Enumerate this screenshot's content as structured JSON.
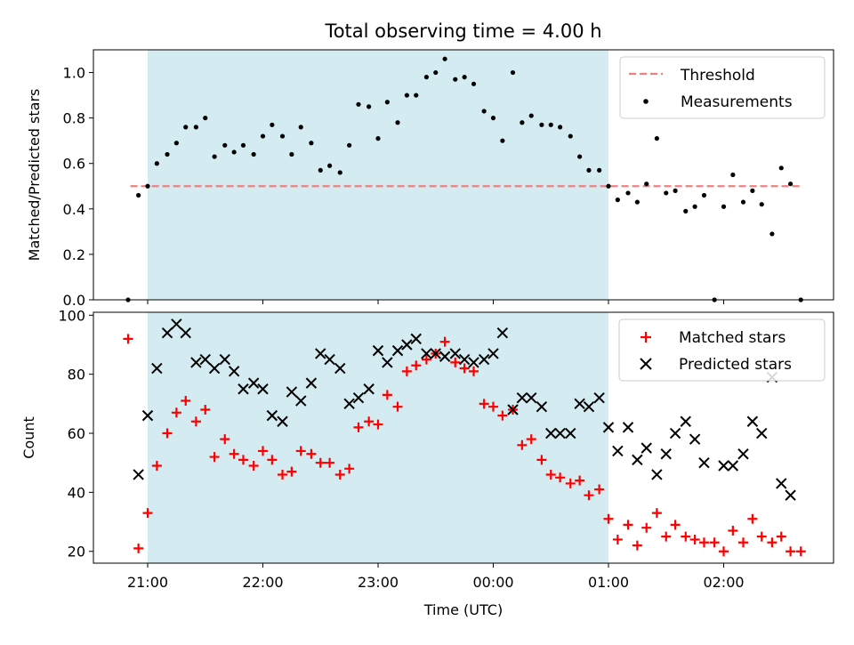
{
  "chart_data": {
    "title": "Total observing time = 4.00 h",
    "xlabel": "Time (UTC)",
    "x_ticks": [
      {
        "hour": 21,
        "label": "21:00"
      },
      {
        "hour": 22,
        "label": "22:00"
      },
      {
        "hour": 23,
        "label": "23:00"
      },
      {
        "hour": 24,
        "label": "00:00"
      },
      {
        "hour": 25,
        "label": "01:00"
      },
      {
        "hour": 26,
        "label": "02:00"
      }
    ],
    "observing_window": [
      21.0,
      25.0
    ],
    "colors": {
      "window": "#d3ebf1",
      "threshold": "#f08080",
      "measurement": "#000000",
      "matched": "#ff0000",
      "predicted": "#000000"
    },
    "panels": [
      {
        "type": "scatter",
        "ylabel": "Matched/Predicted stars",
        "ylim": [
          0,
          1.1
        ],
        "y_ticks": [
          0.0,
          0.2,
          0.4,
          0.6,
          0.8,
          1.0
        ],
        "y_tick_labels": [
          "0.0",
          "0.2",
          "0.4",
          "0.6",
          "0.8",
          "1.0"
        ],
        "legend": [
          "Threshold",
          "Measurements"
        ],
        "threshold": {
          "name": "Threshold",
          "y": 0.5,
          "x": [
            20.85,
            26.67
          ]
        },
        "series": [
          {
            "name": "Measurements",
            "points": [
              [
                20.83,
                0.0
              ],
              [
                20.92,
                0.46
              ],
              [
                21.0,
                0.5
              ],
              [
                21.08,
                0.6
              ],
              [
                21.17,
                0.64
              ],
              [
                21.25,
                0.69
              ],
              [
                21.33,
                0.76
              ],
              [
                21.42,
                0.76
              ],
              [
                21.5,
                0.8
              ],
              [
                21.58,
                0.63
              ],
              [
                21.67,
                0.68
              ],
              [
                21.75,
                0.65
              ],
              [
                21.83,
                0.68
              ],
              [
                21.92,
                0.64
              ],
              [
                22.0,
                0.72
              ],
              [
                22.08,
                0.77
              ],
              [
                22.17,
                0.72
              ],
              [
                22.25,
                0.64
              ],
              [
                22.33,
                0.76
              ],
              [
                22.42,
                0.69
              ],
              [
                22.5,
                0.57
              ],
              [
                22.58,
                0.59
              ],
              [
                22.67,
                0.56
              ],
              [
                22.75,
                0.68
              ],
              [
                22.83,
                0.86
              ],
              [
                22.92,
                0.85
              ],
              [
                23.0,
                0.71
              ],
              [
                23.08,
                0.87
              ],
              [
                23.17,
                0.78
              ],
              [
                23.25,
                0.9
              ],
              [
                23.33,
                0.9
              ],
              [
                23.42,
                0.98
              ],
              [
                23.5,
                1.0
              ],
              [
                23.58,
                1.06
              ],
              [
                23.67,
                0.97
              ],
              [
                23.75,
                0.98
              ],
              [
                23.83,
                0.95
              ],
              [
                23.92,
                0.83
              ],
              [
                24.0,
                0.8
              ],
              [
                24.08,
                0.7
              ],
              [
                24.17,
                1.0
              ],
              [
                24.25,
                0.78
              ],
              [
                24.33,
                0.81
              ],
              [
                24.42,
                0.77
              ],
              [
                24.5,
                0.77
              ],
              [
                24.58,
                0.76
              ],
              [
                24.67,
                0.72
              ],
              [
                24.75,
                0.63
              ],
              [
                24.83,
                0.57
              ],
              [
                24.92,
                0.57
              ],
              [
                25.0,
                0.5
              ],
              [
                25.08,
                0.44
              ],
              [
                25.17,
                0.47
              ],
              [
                25.25,
                0.43
              ],
              [
                25.33,
                0.51
              ],
              [
                25.42,
                0.71
              ],
              [
                25.5,
                0.47
              ],
              [
                25.58,
                0.48
              ],
              [
                25.67,
                0.39
              ],
              [
                25.75,
                0.41
              ],
              [
                25.83,
                0.46
              ],
              [
                25.92,
                0.0
              ],
              [
                26.0,
                0.41
              ],
              [
                26.08,
                0.55
              ],
              [
                26.17,
                0.43
              ],
              [
                26.25,
                0.48
              ],
              [
                26.33,
                0.42
              ],
              [
                26.42,
                0.29
              ],
              [
                26.5,
                0.58
              ],
              [
                26.58,
                0.51
              ],
              [
                26.67,
                0.0
              ]
            ]
          }
        ]
      },
      {
        "type": "scatter",
        "ylabel": "Count",
        "ylim": [
          16,
          101
        ],
        "y_ticks": [
          20,
          40,
          60,
          80,
          100
        ],
        "y_tick_labels": [
          "20",
          "40",
          "60",
          "80",
          "100"
        ],
        "legend": [
          "Matched stars",
          "Predicted stars"
        ],
        "series": [
          {
            "name": "Matched stars",
            "marker": "plus",
            "points": [
              [
                20.83,
                92
              ],
              [
                20.92,
                21
              ],
              [
                21.0,
                33
              ],
              [
                21.08,
                49
              ],
              [
                21.17,
                60
              ],
              [
                21.25,
                67
              ],
              [
                21.33,
                71
              ],
              [
                21.42,
                64
              ],
              [
                21.5,
                68
              ],
              [
                21.58,
                52
              ],
              [
                21.67,
                58
              ],
              [
                21.75,
                53
              ],
              [
                21.83,
                51
              ],
              [
                21.92,
                49
              ],
              [
                22.0,
                54
              ],
              [
                22.08,
                51
              ],
              [
                22.17,
                46
              ],
              [
                22.25,
                47
              ],
              [
                22.33,
                54
              ],
              [
                22.42,
                53
              ],
              [
                22.5,
                50
              ],
              [
                22.58,
                50
              ],
              [
                22.67,
                46
              ],
              [
                22.75,
                48
              ],
              [
                22.83,
                62
              ],
              [
                22.92,
                64
              ],
              [
                23.0,
                63
              ],
              [
                23.08,
                73
              ],
              [
                23.17,
                69
              ],
              [
                23.25,
                81
              ],
              [
                23.33,
                83
              ],
              [
                23.42,
                85
              ],
              [
                23.5,
                87
              ],
              [
                23.58,
                91
              ],
              [
                23.67,
                84
              ],
              [
                23.75,
                82
              ],
              [
                23.83,
                81
              ],
              [
                23.92,
                70
              ],
              [
                24.0,
                69
              ],
              [
                24.08,
                66
              ],
              [
                24.17,
                68
              ],
              [
                24.25,
                56
              ],
              [
                24.33,
                58
              ],
              [
                24.42,
                51
              ],
              [
                24.5,
                46
              ],
              [
                24.58,
                45
              ],
              [
                24.67,
                43
              ],
              [
                24.75,
                44
              ],
              [
                24.83,
                39
              ],
              [
                24.92,
                41
              ],
              [
                25.0,
                31
              ],
              [
                25.08,
                24
              ],
              [
                25.17,
                29
              ],
              [
                25.25,
                22
              ],
              [
                25.33,
                28
              ],
              [
                25.42,
                33
              ],
              [
                25.5,
                25
              ],
              [
                25.58,
                29
              ],
              [
                25.67,
                25
              ],
              [
                25.75,
                24
              ],
              [
                25.83,
                23
              ],
              [
                25.92,
                23
              ],
              [
                26.0,
                20
              ],
              [
                26.08,
                27
              ],
              [
                26.17,
                23
              ],
              [
                26.25,
                31
              ],
              [
                26.33,
                25
              ],
              [
                26.42,
                23
              ],
              [
                26.5,
                25
              ],
              [
                26.58,
                20
              ],
              [
                26.67,
                20
              ]
            ]
          },
          {
            "name": "Predicted stars",
            "marker": "cross",
            "points": [
              [
                20.92,
                46
              ],
              [
                21.0,
                66
              ],
              [
                21.08,
                82
              ],
              [
                21.17,
                94
              ],
              [
                21.25,
                97
              ],
              [
                21.33,
                94
              ],
              [
                21.42,
                84
              ],
              [
                21.5,
                85
              ],
              [
                21.58,
                82
              ],
              [
                21.67,
                85
              ],
              [
                21.75,
                81
              ],
              [
                21.83,
                75
              ],
              [
                21.92,
                77
              ],
              [
                22.0,
                75
              ],
              [
                22.08,
                66
              ],
              [
                22.17,
                64
              ],
              [
                22.25,
                74
              ],
              [
                22.33,
                71
              ],
              [
                22.42,
                77
              ],
              [
                22.5,
                87
              ],
              [
                22.58,
                85
              ],
              [
                22.67,
                82
              ],
              [
                22.75,
                70
              ],
              [
                22.83,
                72
              ],
              [
                22.92,
                75
              ],
              [
                23.0,
                88
              ],
              [
                23.08,
                84
              ],
              [
                23.17,
                88
              ],
              [
                23.25,
                90
              ],
              [
                23.33,
                92
              ],
              [
                23.42,
                87
              ],
              [
                23.5,
                87
              ],
              [
                23.58,
                86
              ],
              [
                23.67,
                87
              ],
              [
                23.75,
                85
              ],
              [
                23.83,
                84
              ],
              [
                23.92,
                85
              ],
              [
                24.0,
                87
              ],
              [
                24.08,
                94
              ],
              [
                24.17,
                68
              ],
              [
                24.25,
                72
              ],
              [
                24.33,
                72
              ],
              [
                24.42,
                69
              ],
              [
                24.5,
                60
              ],
              [
                24.58,
                60
              ],
              [
                24.67,
                60
              ],
              [
                24.75,
                70
              ],
              [
                24.83,
                69
              ],
              [
                24.92,
                72
              ],
              [
                25.0,
                62
              ],
              [
                25.08,
                54
              ],
              [
                25.17,
                62
              ],
              [
                25.25,
                51
              ],
              [
                25.33,
                55
              ],
              [
                25.42,
                46
              ],
              [
                25.5,
                53
              ],
              [
                25.58,
                60
              ],
              [
                25.67,
                64
              ],
              [
                25.75,
                58
              ],
              [
                25.83,
                50
              ],
              [
                26.0,
                49
              ],
              [
                26.08,
                49
              ],
              [
                26.17,
                53
              ],
              [
                26.25,
                64
              ],
              [
                26.33,
                60
              ],
              [
                26.42,
                79
              ],
              [
                26.5,
                43
              ],
              [
                26.58,
                39
              ]
            ]
          }
        ]
      }
    ]
  }
}
